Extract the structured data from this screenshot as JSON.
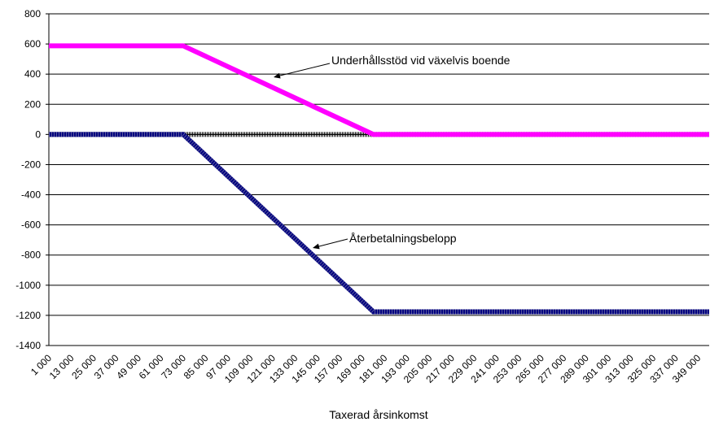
{
  "chart_data": {
    "type": "line",
    "xlabel": "Taxerad årsinkomst",
    "ylabel": "",
    "ylim": [
      -1400,
      800
    ],
    "y_ticks": [
      800,
      600,
      400,
      200,
      0,
      -200,
      -400,
      -600,
      -800,
      -1000,
      -1200,
      -1400
    ],
    "categories": [
      "1 000",
      "13 000",
      "25 000",
      "37 000",
      "49 000",
      "61 000",
      "73 000",
      "85 000",
      "97 000",
      "109 000",
      "121 000",
      "133 000",
      "145 000",
      "157 000",
      "169 000",
      "181 000",
      "193 000",
      "205 000",
      "217 000",
      "229 000",
      "241 000",
      "253 000",
      "265 000",
      "277 000",
      "289 000",
      "301 000",
      "313 000",
      "325 000",
      "337 000",
      "349 000"
    ],
    "grid": true,
    "series": [
      {
        "name": "Underhållsstöd vid växelvis boende",
        "color": "#ff00ff",
        "x": [
          1000,
          73000,
          175000,
          355000
        ],
        "y": [
          588,
          588,
          0,
          0
        ]
      },
      {
        "name": "Återbetalningsbelopp",
        "color": "#000080",
        "x": [
          1000,
          73000,
          175000,
          355000
        ],
        "y": [
          0,
          0,
          -1176,
          -1176
        ]
      }
    ],
    "annotations": [
      {
        "text": "Underhållsstöd vid växelvis boende",
        "series": 0,
        "point_x": 120000
      },
      {
        "text": "Återbetalningsbelopp",
        "series": 1,
        "point_x": 140000
      }
    ]
  }
}
